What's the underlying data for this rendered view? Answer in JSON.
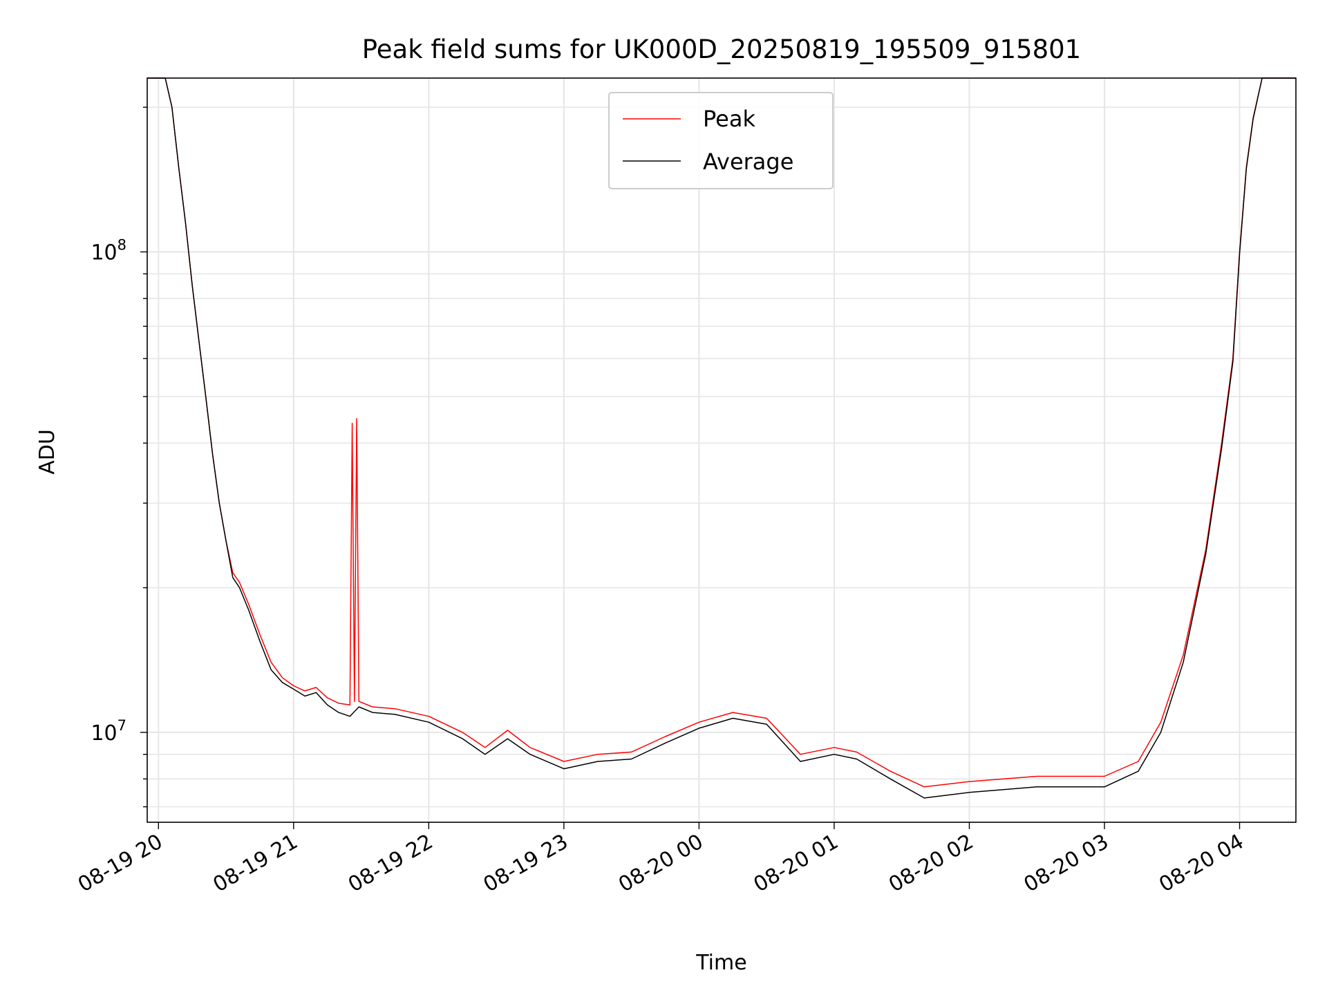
{
  "chart_data": {
    "type": "line",
    "title": "Peak field sums for UK000D_20250819_195509_915801",
    "xlabel": "Time",
    "ylabel": "ADU",
    "y_scale": "log",
    "ylim": [
      6500000,
      230000000
    ],
    "xlim": [
      "2025-08-19 19:55",
      "2025-08-20 04:25"
    ],
    "x_ticks": [
      "08-19 20",
      "08-19 21",
      "08-19 22",
      "08-19 23",
      "08-20 00",
      "08-20 01",
      "08-20 02",
      "08-20 03",
      "08-20 04"
    ],
    "y_tick_labels": [
      {
        "base": "10",
        "exp": "7",
        "value": 10000000
      },
      {
        "base": "10",
        "exp": "8",
        "value": 100000000
      }
    ],
    "grid": true,
    "legend_position": "top-center",
    "series": [
      {
        "name": "Peak",
        "color": "#ff0000",
        "points": [
          [
            "2025-08-19 19:55",
            230000000
          ],
          [
            "2025-08-19 20:03",
            230000000
          ],
          [
            "2025-08-19 20:06",
            200000000
          ],
          [
            "2025-08-19 20:09",
            150000000
          ],
          [
            "2025-08-19 20:12",
            115000000
          ],
          [
            "2025-08-19 20:15",
            85000000
          ],
          [
            "2025-08-19 20:18",
            65000000
          ],
          [
            "2025-08-19 20:21",
            50000000
          ],
          [
            "2025-08-19 20:24",
            38000000
          ],
          [
            "2025-08-19 20:27",
            30000000
          ],
          [
            "2025-08-19 20:30",
            25000000
          ],
          [
            "2025-08-19 20:33",
            21500000
          ],
          [
            "2025-08-19 20:36",
            20500000
          ],
          [
            "2025-08-19 20:40",
            18500000
          ],
          [
            "2025-08-19 20:45",
            16000000
          ],
          [
            "2025-08-19 20:50",
            14000000
          ],
          [
            "2025-08-19 20:55",
            13000000
          ],
          [
            "2025-08-19 21:00",
            12500000
          ],
          [
            "2025-08-19 21:05",
            12200000
          ],
          [
            "2025-08-19 21:10",
            12400000
          ],
          [
            "2025-08-19 21:15",
            11800000
          ],
          [
            "2025-08-19 21:20",
            11500000
          ],
          [
            "2025-08-19 21:25",
            11400000
          ],
          [
            "2025-08-19 21:26",
            44000000
          ],
          [
            "2025-08-19 21:27",
            11600000
          ],
          [
            "2025-08-19 21:28",
            45000000
          ],
          [
            "2025-08-19 21:29",
            11600000
          ],
          [
            "2025-08-19 21:35",
            11300000
          ],
          [
            "2025-08-19 21:45",
            11200000
          ],
          [
            "2025-08-19 22:00",
            10800000
          ],
          [
            "2025-08-19 22:15",
            10000000
          ],
          [
            "2025-08-19 22:25",
            9300000
          ],
          [
            "2025-08-19 22:35",
            10100000
          ],
          [
            "2025-08-19 22:45",
            9300000
          ],
          [
            "2025-08-19 23:00",
            8700000
          ],
          [
            "2025-08-19 23:15",
            9000000
          ],
          [
            "2025-08-19 23:30",
            9100000
          ],
          [
            "2025-08-19 23:45",
            9800000
          ],
          [
            "2025-08-20 00:00",
            10500000
          ],
          [
            "2025-08-20 00:15",
            11000000
          ],
          [
            "2025-08-20 00:30",
            10700000
          ],
          [
            "2025-08-20 00:45",
            9000000
          ],
          [
            "2025-08-20 01:00",
            9300000
          ],
          [
            "2025-08-20 01:10",
            9100000
          ],
          [
            "2025-08-20 01:25",
            8300000
          ],
          [
            "2025-08-20 01:40",
            7700000
          ],
          [
            "2025-08-20 02:00",
            7900000
          ],
          [
            "2025-08-20 02:30",
            8100000
          ],
          [
            "2025-08-20 03:00",
            8100000
          ],
          [
            "2025-08-20 03:15",
            8700000
          ],
          [
            "2025-08-20 03:25",
            10500000
          ],
          [
            "2025-08-20 03:35",
            14500000
          ],
          [
            "2025-08-20 03:45",
            24000000
          ],
          [
            "2025-08-20 03:52",
            40000000
          ],
          [
            "2025-08-20 03:57",
            60000000
          ],
          [
            "2025-08-20 04:00",
            100000000
          ],
          [
            "2025-08-20 04:03",
            150000000
          ],
          [
            "2025-08-20 04:06",
            190000000
          ],
          [
            "2025-08-20 04:10",
            230000000
          ],
          [
            "2025-08-20 04:25",
            230000000
          ]
        ]
      },
      {
        "name": "Average",
        "color": "#000000",
        "points": [
          [
            "2025-08-19 19:55",
            230000000
          ],
          [
            "2025-08-19 20:03",
            230000000
          ],
          [
            "2025-08-19 20:06",
            200000000
          ],
          [
            "2025-08-19 20:09",
            150000000
          ],
          [
            "2025-08-19 20:12",
            115000000
          ],
          [
            "2025-08-19 20:15",
            85000000
          ],
          [
            "2025-08-19 20:18",
            65000000
          ],
          [
            "2025-08-19 20:21",
            50000000
          ],
          [
            "2025-08-19 20:24",
            38000000
          ],
          [
            "2025-08-19 20:27",
            30000000
          ],
          [
            "2025-08-19 20:30",
            25000000
          ],
          [
            "2025-08-19 20:33",
            21000000
          ],
          [
            "2025-08-19 20:36",
            20000000
          ],
          [
            "2025-08-19 20:40",
            18000000
          ],
          [
            "2025-08-19 20:45",
            15500000
          ],
          [
            "2025-08-19 20:50",
            13500000
          ],
          [
            "2025-08-19 20:55",
            12700000
          ],
          [
            "2025-08-19 21:00",
            12300000
          ],
          [
            "2025-08-19 21:05",
            11900000
          ],
          [
            "2025-08-19 21:10",
            12100000
          ],
          [
            "2025-08-19 21:15",
            11400000
          ],
          [
            "2025-08-19 21:20",
            11000000
          ],
          [
            "2025-08-19 21:25",
            10800000
          ],
          [
            "2025-08-19 21:29",
            11300000
          ],
          [
            "2025-08-19 21:35",
            11000000
          ],
          [
            "2025-08-19 21:45",
            10900000
          ],
          [
            "2025-08-19 22:00",
            10500000
          ],
          [
            "2025-08-19 22:15",
            9700000
          ],
          [
            "2025-08-19 22:25",
            9000000
          ],
          [
            "2025-08-19 22:35",
            9700000
          ],
          [
            "2025-08-19 22:45",
            9000000
          ],
          [
            "2025-08-19 23:00",
            8400000
          ],
          [
            "2025-08-19 23:15",
            8700000
          ],
          [
            "2025-08-19 23:30",
            8800000
          ],
          [
            "2025-08-19 23:45",
            9500000
          ],
          [
            "2025-08-20 00:00",
            10200000
          ],
          [
            "2025-08-20 00:15",
            10700000
          ],
          [
            "2025-08-20 00:30",
            10400000
          ],
          [
            "2025-08-20 00:45",
            8700000
          ],
          [
            "2025-08-20 01:00",
            9000000
          ],
          [
            "2025-08-20 01:10",
            8800000
          ],
          [
            "2025-08-20 01:25",
            8000000
          ],
          [
            "2025-08-20 01:40",
            7300000
          ],
          [
            "2025-08-20 02:00",
            7500000
          ],
          [
            "2025-08-20 02:30",
            7700000
          ],
          [
            "2025-08-20 03:00",
            7700000
          ],
          [
            "2025-08-20 03:15",
            8300000
          ],
          [
            "2025-08-20 03:25",
            10000000
          ],
          [
            "2025-08-20 03:35",
            14000000
          ],
          [
            "2025-08-20 03:45",
            23500000
          ],
          [
            "2025-08-20 03:52",
            39000000
          ],
          [
            "2025-08-20 03:57",
            59000000
          ],
          [
            "2025-08-20 04:00",
            99000000
          ],
          [
            "2025-08-20 04:03",
            149000000
          ],
          [
            "2025-08-20 04:06",
            189000000
          ],
          [
            "2025-08-20 04:10",
            230000000
          ],
          [
            "2025-08-20 04:25",
            230000000
          ]
        ]
      }
    ]
  }
}
